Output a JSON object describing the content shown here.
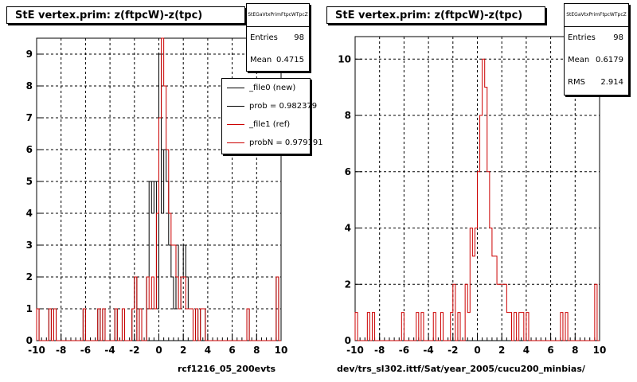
{
  "pads": [
    {
      "title": "StE  vertex.prim: z(ftpcW)-z(tpc)",
      "stats": {
        "name": "StEGaVtxPrimFtpcWTpcZ",
        "rows": [
          {
            "label": "Entries",
            "value": "98"
          },
          {
            "label": "Mean",
            "value": "0.4715"
          }
        ]
      },
      "legend": [
        {
          "label": "_file0 (new)",
          "color": "#000000"
        },
        {
          "label": "prob = 0.982379",
          "color": "#000000"
        },
        {
          "label": "_file1 (ref)",
          "color": "#cc0000"
        },
        {
          "label": "probN = 0.979191",
          "color": "#cc0000"
        }
      ],
      "footer": "rcf1216_05_200evts"
    },
    {
      "title": "StE  vertex.prim: z(ftpcW)-z(tpc)",
      "stats": {
        "name": "StEGaVtxPrimFtpcWTpcZ",
        "rows": [
          {
            "label": "Entries",
            "value": "98"
          },
          {
            "label": "Mean",
            "value": "0.6179"
          },
          {
            "label": "RMS",
            "value": "2.914"
          }
        ]
      },
      "footer": "dev/trs_sl302.ittf/Sat/year_2005/cucu200_minbias/"
    }
  ],
  "chart_data": [
    {
      "type": "histogram",
      "xlim": [
        -10,
        10
      ],
      "ylim": [
        0,
        9.5
      ],
      "xticks": [
        -10,
        -8,
        -6,
        -4,
        -2,
        0,
        2,
        4,
        6,
        8,
        10
      ],
      "yticks": [
        0,
        1,
        2,
        3,
        4,
        5,
        6,
        7,
        8,
        9
      ],
      "grid": true,
      "bin_width": 0.2,
      "series": [
        {
          "name": "_file0 (new)",
          "color": "#000000",
          "bins": [
            [
              -10.0,
              1
            ],
            [
              -9.0,
              1
            ],
            [
              -8.6,
              1
            ],
            [
              -6.2,
              1
            ],
            [
              -5.0,
              1
            ],
            [
              -4.6,
              1
            ],
            [
              -3.6,
              1
            ],
            [
              -3.0,
              1
            ],
            [
              -2.2,
              1
            ],
            [
              -2.0,
              2
            ],
            [
              -1.6,
              1
            ],
            [
              -1.0,
              2
            ],
            [
              -0.8,
              5
            ],
            [
              -0.6,
              4
            ],
            [
              -0.4,
              5
            ],
            [
              -0.2,
              1
            ],
            [
              0.0,
              9
            ],
            [
              0.2,
              4
            ],
            [
              0.4,
              6
            ],
            [
              0.6,
              5
            ],
            [
              0.8,
              3
            ],
            [
              1.0,
              2
            ],
            [
              1.2,
              1
            ],
            [
              1.4,
              3
            ],
            [
              1.6,
              1
            ],
            [
              1.8,
              2
            ],
            [
              2.0,
              3
            ],
            [
              2.2,
              2
            ],
            [
              2.4,
              1
            ],
            [
              2.6,
              1
            ],
            [
              3.0,
              1
            ],
            [
              3.4,
              1
            ],
            [
              3.6,
              1
            ],
            [
              7.2,
              1
            ],
            [
              9.6,
              2
            ]
          ]
        },
        {
          "name": "_file1 (ref)",
          "color": "#cc0000",
          "bins": [
            [
              -10.0,
              1
            ],
            [
              -9.0,
              1
            ],
            [
              -8.6,
              1
            ],
            [
              -6.2,
              1
            ],
            [
              -5.0,
              1
            ],
            [
              -4.6,
              1
            ],
            [
              -3.6,
              1
            ],
            [
              -3.0,
              1
            ],
            [
              -2.2,
              1
            ],
            [
              -2.0,
              2
            ],
            [
              -1.6,
              1
            ],
            [
              -1.0,
              2
            ],
            [
              -0.8,
              1
            ],
            [
              -0.6,
              2
            ],
            [
              -0.4,
              1
            ],
            [
              -0.2,
              4
            ],
            [
              0.0,
              7
            ],
            [
              0.2,
              9.5
            ],
            [
              0.4,
              8
            ],
            [
              0.6,
              6
            ],
            [
              0.8,
              4
            ],
            [
              1.0,
              3
            ],
            [
              1.2,
              3
            ],
            [
              1.4,
              2
            ],
            [
              1.6,
              1
            ],
            [
              1.8,
              2
            ],
            [
              2.0,
              2
            ],
            [
              2.2,
              1
            ],
            [
              2.4,
              1
            ],
            [
              2.6,
              1
            ],
            [
              3.0,
              1
            ],
            [
              3.4,
              1
            ],
            [
              3.6,
              1
            ],
            [
              7.2,
              1
            ],
            [
              9.6,
              2
            ]
          ]
        }
      ]
    },
    {
      "type": "histogram",
      "xlim": [
        -10,
        10
      ],
      "ylim": [
        0,
        10.8
      ],
      "xticks": [
        -10,
        -8,
        -6,
        -4,
        -2,
        0,
        2,
        4,
        6,
        8,
        10
      ],
      "yticks": [
        0,
        2,
        4,
        6,
        8,
        10
      ],
      "grid": true,
      "bin_width": 0.2,
      "series": [
        {
          "name": "",
          "color": "#cc0000",
          "bins": [
            [
              -10.0,
              1
            ],
            [
              -9.0,
              1
            ],
            [
              -8.6,
              1
            ],
            [
              -6.2,
              1
            ],
            [
              -5.0,
              1
            ],
            [
              -4.6,
              1
            ],
            [
              -3.6,
              1
            ],
            [
              -3.0,
              1
            ],
            [
              -2.2,
              1
            ],
            [
              -2.0,
              2
            ],
            [
              -1.6,
              1
            ],
            [
              -1.0,
              2
            ],
            [
              -0.8,
              1
            ],
            [
              -0.6,
              4
            ],
            [
              -0.4,
              3
            ],
            [
              -0.2,
              4
            ],
            [
              0.0,
              6
            ],
            [
              0.2,
              8
            ],
            [
              0.4,
              10
            ],
            [
              0.6,
              9
            ],
            [
              0.8,
              6
            ],
            [
              1.0,
              4
            ],
            [
              1.2,
              3
            ],
            [
              1.4,
              3
            ],
            [
              1.6,
              2
            ],
            [
              1.8,
              2
            ],
            [
              2.0,
              2
            ],
            [
              2.2,
              2
            ],
            [
              2.4,
              1
            ],
            [
              2.6,
              1
            ],
            [
              3.0,
              1
            ],
            [
              3.4,
              1
            ],
            [
              3.6,
              1
            ],
            [
              4.0,
              1
            ],
            [
              6.8,
              1
            ],
            [
              7.2,
              1
            ],
            [
              9.6,
              2
            ]
          ]
        }
      ]
    }
  ]
}
